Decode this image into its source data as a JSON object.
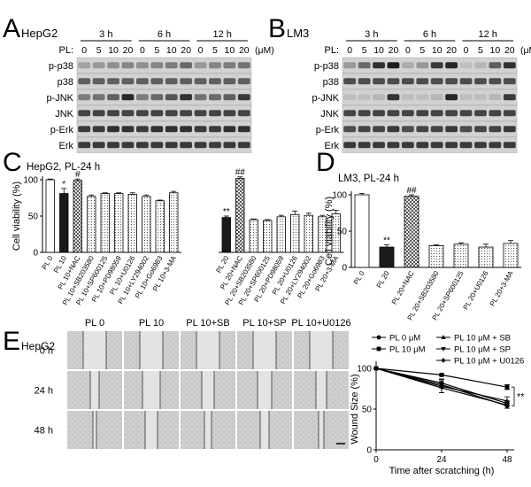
{
  "panelA": {
    "letter": "A",
    "cell": "HepG2",
    "pl_label": "PL:",
    "unit": "(μM)",
    "times": [
      "3 h",
      "6 h",
      "12 h"
    ],
    "doses": [
      "0",
      "5",
      "10",
      "20"
    ],
    "rows": [
      "p-p38",
      "p38",
      "p-JNK",
      "JNK",
      "p-Erk",
      "Erk"
    ]
  },
  "panelB": {
    "letter": "B",
    "cell": "LM3",
    "pl_label": "PL:",
    "unit": "(μM)",
    "times": [
      "3 h",
      "6 h",
      "12 h"
    ],
    "doses": [
      "0",
      "5",
      "10",
      "20"
    ],
    "rows": [
      "p-p38",
      "p38",
      "p-JNK",
      "JNK",
      "p-Erk",
      "Erk"
    ]
  },
  "chart_data": [
    {
      "type": "bar",
      "panel": "C",
      "title": "HepG2, PL-24 h",
      "ylabel": "Cell viability (%)",
      "ylim": [
        0,
        100
      ],
      "yticks": [
        0,
        50,
        100
      ],
      "categories": [
        "PL 0",
        "PL 10",
        "PL 10+NAC",
        "PL 10+SB203580",
        "PL 10+SP600125",
        "PL 10+PD98059",
        "PL 10+U0126",
        "PL 10+LY294002",
        "PL 10+Go6983",
        "PL 10+3-MA",
        "PL 20",
        "PL 20+NAC",
        "PL 20+SB203580",
        "PL 20+SP600125",
        "PL 20+PD98059",
        "PL 20+U0126",
        "PL 20+LY294002",
        "PL 20+Go6983",
        "PL 20+3-MA"
      ],
      "values": [
        100,
        81,
        99,
        77,
        81,
        81,
        80,
        77,
        71,
        82,
        48,
        102,
        45,
        44,
        49,
        52,
        51,
        49,
        53
      ],
      "errors": [
        1,
        7,
        2,
        2,
        1,
        1,
        2,
        2,
        1,
        2,
        2,
        2,
        1,
        1,
        2,
        5,
        3,
        2,
        5
      ],
      "annotations": [
        "",
        "*",
        "#",
        "",
        "",
        "",
        "",
        "",
        "",
        "",
        "**",
        "##",
        "",
        "",
        "",
        "",
        "",
        "",
        ""
      ]
    },
    {
      "type": "bar",
      "panel": "D",
      "title": "LM3, PL-24 h",
      "ylabel": "Cell viability (%)",
      "ylim": [
        0,
        100
      ],
      "yticks": [
        0,
        50,
        100
      ],
      "categories": [
        "PL 0",
        "PL 20",
        "PL 20+NAC",
        "PL 20+SB203580",
        "PL 20+SP600125",
        "PL 20+U0126",
        "PL 20+3-MA"
      ],
      "values": [
        100,
        28,
        98,
        30,
        32,
        28,
        33
      ],
      "errors": [
        2,
        3,
        2,
        1,
        2,
        4,
        4
      ],
      "annotations": [
        "",
        "**",
        "##",
        "",
        "",
        "",
        ""
      ]
    },
    {
      "type": "line",
      "panel": "E",
      "ylabel": "Wound Size (%)",
      "xlabel": "Time after scratching (h)",
      "x": [
        0,
        24,
        48
      ],
      "xlim": [
        0,
        48
      ],
      "ylim": [
        0,
        100
      ],
      "yticks": [
        0,
        50,
        100
      ],
      "significance": "**",
      "series": [
        {
          "name": "PL 0 μM",
          "marker": "circle",
          "values": [
            100,
            80,
            54
          ]
        },
        {
          "name": "PL 10 μM",
          "marker": "square",
          "values": [
            100,
            92,
            77
          ]
        },
        {
          "name": "PL 10 μM + SB",
          "marker": "triangle-up",
          "values": [
            100,
            78,
            60
          ]
        },
        {
          "name": "PL 10 μM + SP",
          "marker": "triangle-down",
          "values": [
            100,
            76,
            55
          ]
        },
        {
          "name": "PL 10 μM + U0126",
          "marker": "diamond",
          "values": [
            100,
            82,
            57
          ]
        }
      ]
    }
  ],
  "panelE": {
    "letter": "E",
    "cell": "HepG2",
    "columns": [
      "PL 0",
      "PL 10",
      "PL 10+SB",
      "PL 10+SP",
      "PL 10+U0126"
    ],
    "rows": [
      "0 h",
      "24 h",
      "48 h"
    ]
  },
  "letters": {
    "C": "C",
    "D": "D"
  }
}
